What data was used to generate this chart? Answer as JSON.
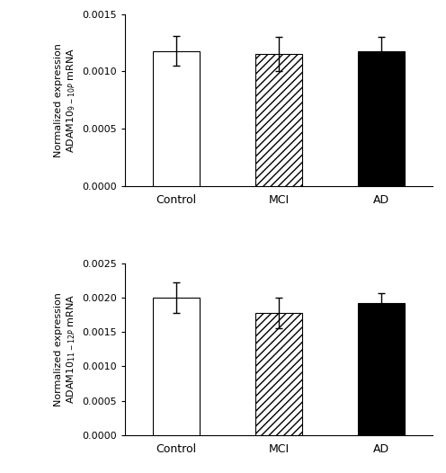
{
  "top_chart": {
    "categories": [
      "Control",
      "MCI",
      "AD"
    ],
    "values": [
      0.00118,
      0.00115,
      0.00118
    ],
    "errors": [
      0.00013,
      0.00015,
      0.00012
    ],
    "bar_colors": [
      "white",
      "white",
      "black"
    ],
    "bar_hatches": [
      null,
      "////",
      null
    ],
    "bar_edgecolors": [
      "black",
      "black",
      "black"
    ],
    "ylabel_line1": "Normalized expression",
    "ylabel_line2": "ADAM10$_{9-10P}$ mRNA",
    "ylim": [
      0,
      0.0015
    ],
    "yticks": [
      0.0,
      0.0005,
      0.001,
      0.0015
    ],
    "ytick_labels": [
      "0.0000",
      "0.0005",
      "0.0010",
      "0.0015"
    ]
  },
  "bottom_chart": {
    "categories": [
      "Control",
      "MCI",
      "AD"
    ],
    "values": [
      0.002,
      0.00178,
      0.00192
    ],
    "errors": [
      0.00022,
      0.00022,
      0.00015
    ],
    "bar_colors": [
      "white",
      "white",
      "black"
    ],
    "bar_hatches": [
      null,
      "////",
      null
    ],
    "bar_edgecolors": [
      "black",
      "black",
      "black"
    ],
    "ylabel_line1": "Normalized expression",
    "ylabel_line2": "ADAM10$_{11-12P}$ mRNA",
    "ylim": [
      0,
      0.0025
    ],
    "yticks": [
      0.0,
      0.0005,
      0.001,
      0.0015,
      0.002,
      0.0025
    ],
    "ytick_labels": [
      "0.0000",
      "0.0005",
      "0.0010",
      "0.0015",
      "0.0020",
      "0.0025"
    ]
  },
  "background_color": "#ffffff",
  "bar_width": 0.45,
  "fontsize_ticks": 8,
  "fontsize_ylabel": 8,
  "fontsize_xlabel": 9,
  "capsize": 3,
  "error_linewidth": 1.0
}
